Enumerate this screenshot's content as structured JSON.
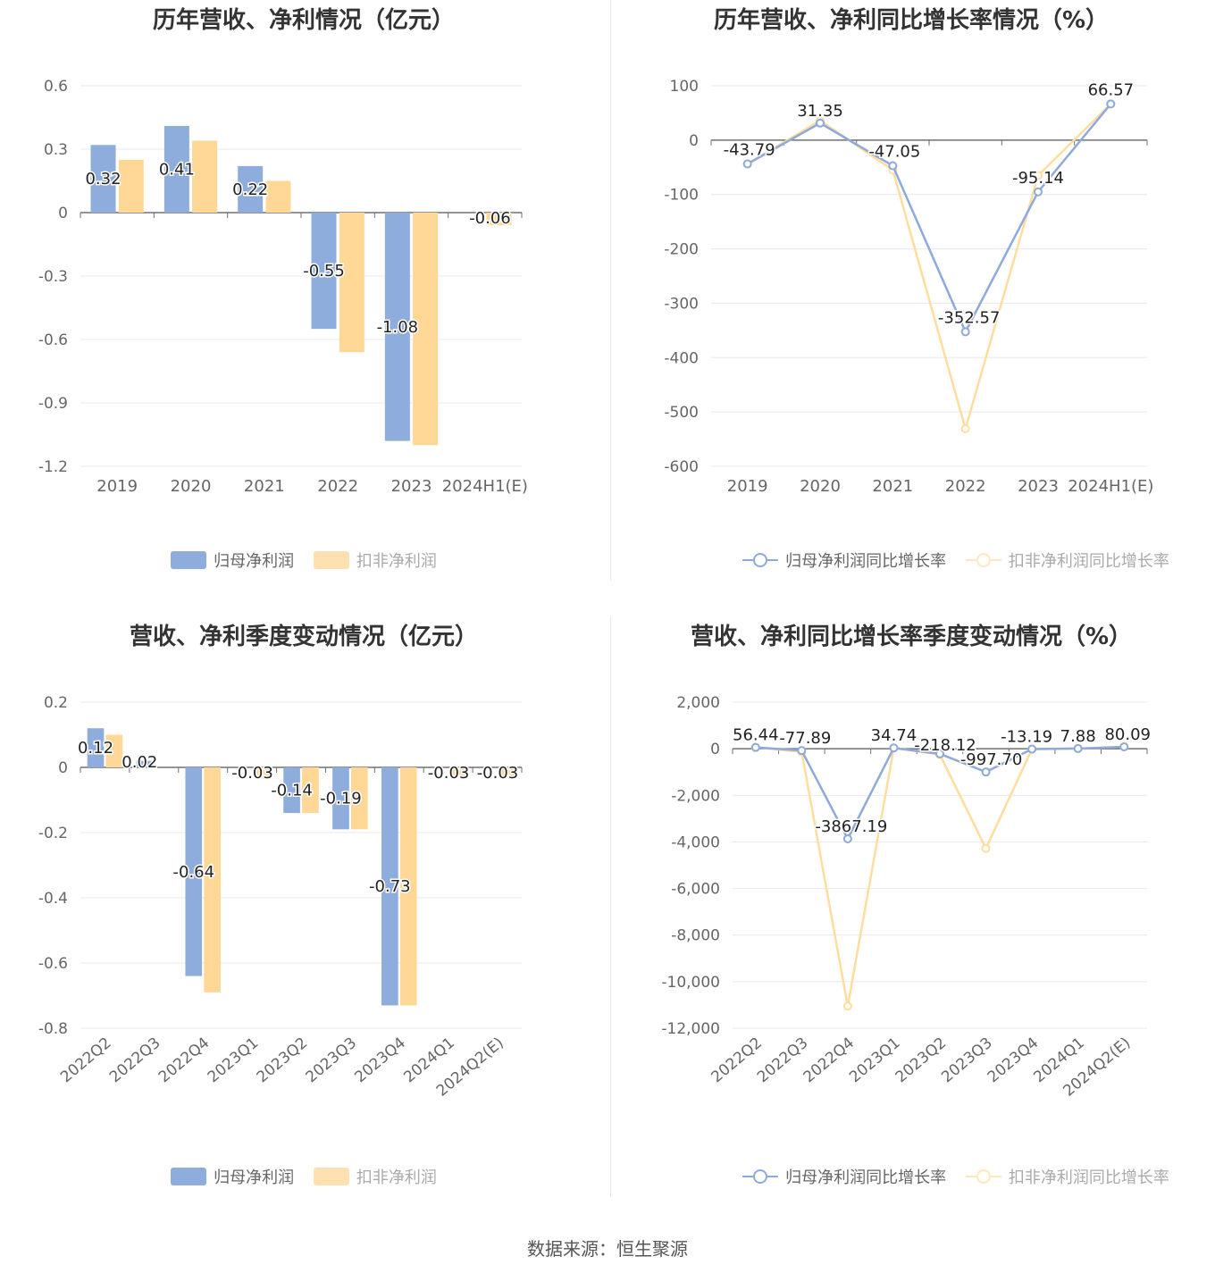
{
  "colors": {
    "blue": "#8FADDC",
    "orange": "#FFD797",
    "blue_line": "#8EA9DA",
    "orange_line": "#FFDD9E",
    "grid": "#E6E8F0",
    "axis": "#6E7079"
  },
  "footer": {
    "source": "数据来源：恒生聚源"
  },
  "chart_data": [
    {
      "type": "bar",
      "title": "历年营收、净利情况（亿元）",
      "categories": [
        "2019",
        "2020",
        "2021",
        "2022",
        "2023",
        "2024H1(E)"
      ],
      "ylim": [
        -1.2,
        0.6
      ],
      "yticks": [
        0.6,
        0.3,
        0,
        -0.3,
        -0.6,
        -0.9,
        -1.2
      ],
      "ytick_labels": [
        "0.6",
        "0.3",
        "0",
        "-0.3",
        "-0.6",
        "-0.9",
        "-1.2"
      ],
      "grid": true,
      "legend_placement": "bottom",
      "series": [
        {
          "name": "归母净利润",
          "values": [
            0.32,
            0.41,
            0.22,
            -0.55,
            -1.08,
            null
          ],
          "labels": [
            "0.32",
            "0.41",
            "0.22",
            "-0.55",
            "-1.08",
            ""
          ]
        },
        {
          "name": "扣非净利润",
          "values": [
            0.25,
            0.34,
            0.15,
            -0.66,
            -1.1,
            -0.06
          ],
          "labels": [
            "",
            "",
            "",
            "",
            "",
            "-0.06"
          ]
        }
      ]
    },
    {
      "type": "line",
      "title": "历年营收、净利同比增长率情况（%）",
      "categories": [
        "2019",
        "2020",
        "2021",
        "2022",
        "2023",
        "2024H1(E)"
      ],
      "ylim": [
        -600,
        100
      ],
      "yticks": [
        100,
        0,
        -100,
        -200,
        -300,
        -400,
        -500,
        -600
      ],
      "ytick_labels": [
        "100",
        "0",
        "-100",
        "-200",
        "-300",
        "-400",
        "-500",
        "-600"
      ],
      "grid": true,
      "legend_placement": "bottom",
      "series": [
        {
          "name": "归母净利润同比增长率",
          "values": [
            -43.79,
            31.35,
            -47.05,
            -352.57,
            -95.14,
            66.57
          ],
          "labels": [
            "-43.79",
            "31.35",
            "-47.05",
            "-352.57",
            "-95.14",
            "66.57"
          ]
        },
        {
          "name": "扣非净利润同比增长率",
          "values": [
            -43.79,
            36,
            -55,
            -531,
            -65,
            66.57
          ],
          "labels": [
            "",
            "",
            "",
            "",
            "",
            ""
          ]
        }
      ]
    },
    {
      "type": "bar",
      "title": "营收、净利季度变动情况（亿元）",
      "categories": [
        "2022Q2",
        "2022Q3",
        "2022Q4",
        "2023Q1",
        "2023Q2",
        "2023Q3",
        "2023Q4",
        "2024Q1",
        "2024Q2(E)"
      ],
      "ylim": [
        -0.8,
        0.2
      ],
      "yticks": [
        0.2,
        0,
        -0.2,
        -0.4,
        -0.6,
        -0.8
      ],
      "ytick_labels": [
        "0.2",
        "0",
        "-0.2",
        "-0.4",
        "-0.6",
        "-0.8"
      ],
      "grid": true,
      "legend_placement": "bottom",
      "series": [
        {
          "name": "归母净利润",
          "values": [
            0.12,
            0.02,
            -0.64,
            null,
            -0.14,
            -0.19,
            -0.73,
            null,
            null
          ],
          "labels": [
            "0.12",
            "0.02",
            "-0.64",
            "",
            "-0.14",
            "-0.19",
            "-0.73",
            "",
            ""
          ]
        },
        {
          "name": "扣非净利润",
          "values": [
            0.1,
            null,
            -0.69,
            -0.03,
            -0.14,
            -0.19,
            -0.73,
            -0.03,
            -0.03
          ],
          "labels": [
            "",
            "",
            "",
            "-0.03",
            "",
            "",
            "",
            "-0.03",
            "-0.03"
          ]
        }
      ]
    },
    {
      "type": "line",
      "title": "营收、净利同比增长率季度变动情况（%）",
      "categories": [
        "2022Q2",
        "2022Q3",
        "2022Q4",
        "2023Q1",
        "2023Q2",
        "2023Q3",
        "2023Q4",
        "2024Q1",
        "2024Q2(E)"
      ],
      "ylim": [
        -12000,
        2000
      ],
      "yticks": [
        2000,
        0,
        -2000,
        -4000,
        -6000,
        -8000,
        -10000,
        -12000
      ],
      "ytick_labels": [
        "2,000",
        "0",
        "-2,000",
        "-4,000",
        "-6,000",
        "-8,000",
        "-10,000",
        "-12,000"
      ],
      "grid": true,
      "legend_placement": "bottom",
      "series": [
        {
          "name": "归母净利润同比增长率",
          "values": [
            56.44,
            -77.89,
            -3867.19,
            34.74,
            -218.12,
            -997.7,
            -13.19,
            7.88,
            80.09
          ],
          "labels": [
            "56.44",
            "-77.89",
            "-3867.19",
            "34.74",
            "-218.12",
            "-997.70",
            "-13.19",
            "7.88",
            "80.09"
          ]
        },
        {
          "name": "扣非净利润同比增长率",
          "values": [
            56.44,
            -130,
            -11050,
            34.74,
            -250,
            -4280,
            -13.19,
            7.88,
            80.09
          ],
          "labels": [
            "",
            "",
            "",
            "",
            "",
            "",
            "",
            "",
            ""
          ]
        }
      ]
    }
  ]
}
